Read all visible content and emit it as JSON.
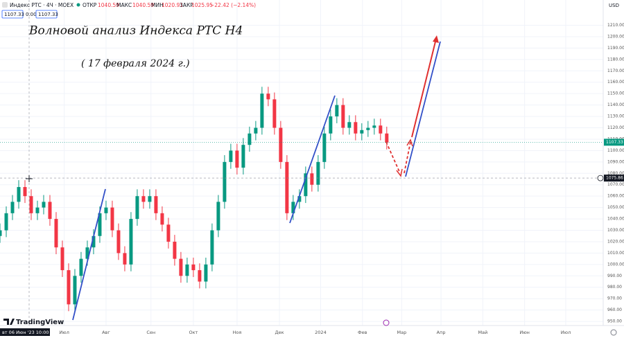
{
  "header": {
    "symbol": "Индекс РТС · 4Ч · MOEX",
    "open_label": "ОТКР",
    "open": "1040.59",
    "high_label": "МАКС",
    "high": "1040.59",
    "low_label": "МИН",
    "low": "1020.91",
    "close_label": "ЗАКР",
    "close": "1025.95",
    "change": "−22.42 (−2.14%)",
    "box1": "1107.33",
    "box2": "0.00",
    "box3": "1107.33"
  },
  "annotations": {
    "title": "Волновой анализ Индекса РТС Н4",
    "date": "( 17 февраля 2024 г.)"
  },
  "footer": {
    "cursor_date": "вт 06 Июн '23  10:00",
    "logo": "TradingView",
    "currency": "USD"
  },
  "chart_data": {
    "type": "candlestick",
    "x": [
      0,
      1,
      2,
      3,
      4,
      5,
      6,
      7,
      8,
      9,
      10,
      11,
      12,
      13,
      14,
      15,
      16,
      17,
      18,
      19,
      20,
      21,
      22,
      23,
      24,
      25,
      26,
      27,
      28,
      29,
      30,
      31,
      32,
      33,
      34,
      35,
      36,
      37,
      38,
      39,
      40,
      41,
      42,
      43,
      44,
      45,
      46,
      47,
      48,
      49,
      50,
      51,
      52,
      53,
      54,
      55,
      56,
      57,
      58,
      59,
      60,
      61,
      62
    ],
    "open": [
      1025,
      1030,
      1045,
      1055,
      1068,
      1060,
      1045,
      1050,
      1055,
      1040,
      1015,
      995,
      965,
      990,
      1005,
      1015,
      1025,
      1045,
      1050,
      1030,
      1010,
      1000,
      1040,
      1060,
      1055,
      1060,
      1045,
      1035,
      1020,
      1005,
      990,
      1000,
      995,
      985,
      1000,
      1030,
      1055,
      1090,
      1100,
      1085,
      1105,
      1115,
      1120,
      1150,
      1145,
      1120,
      1090,
      1045,
      1055,
      1060,
      1080,
      1070,
      1090,
      1115,
      1130,
      1140,
      1120,
      1125,
      1115,
      1118,
      1120,
      1122,
      1115
    ],
    "high": [
      1036,
      1051,
      1061,
      1074,
      1074,
      1066,
      1056,
      1061,
      1061,
      1046,
      1021,
      1001,
      996,
      1011,
      1021,
      1031,
      1051,
      1056,
      1056,
      1036,
      1016,
      1046,
      1066,
      1066,
      1066,
      1066,
      1051,
      1041,
      1026,
      1011,
      1006,
      1006,
      1001,
      1006,
      1036,
      1061,
      1096,
      1106,
      1106,
      1111,
      1121,
      1126,
      1156,
      1156,
      1151,
      1126,
      1096,
      1061,
      1066,
      1086,
      1086,
      1096,
      1121,
      1136,
      1146,
      1146,
      1131,
      1131,
      1124,
      1126,
      1128,
      1128,
      1121
    ],
    "low": [
      1019,
      1024,
      1039,
      1049,
      1054,
      1039,
      1039,
      1044,
      1034,
      1009,
      989,
      959,
      959,
      984,
      999,
      1009,
      1019,
      1039,
      1024,
      1004,
      994,
      994,
      1034,
      1049,
      1049,
      1039,
      1029,
      1014,
      999,
      984,
      984,
      989,
      979,
      979,
      994,
      1024,
      1049,
      1084,
      1079,
      1079,
      1099,
      1109,
      1114,
      1139,
      1114,
      1084,
      1039,
      1039,
      1049,
      1054,
      1064,
      1064,
      1084,
      1109,
      1124,
      1114,
      1114,
      1109,
      1109,
      1112,
      1114,
      1109,
      1101
    ],
    "close": [
      1030,
      1045,
      1055,
      1068,
      1060,
      1045,
      1050,
      1055,
      1040,
      1015,
      995,
      965,
      990,
      1005,
      1015,
      1025,
      1045,
      1050,
      1030,
      1010,
      1000,
      1040,
      1060,
      1055,
      1060,
      1045,
      1035,
      1020,
      1005,
      990,
      1000,
      995,
      985,
      1000,
      1030,
      1055,
      1090,
      1100,
      1085,
      1105,
      1115,
      1120,
      1150,
      1145,
      1120,
      1090,
      1045,
      1055,
      1060,
      1080,
      1070,
      1090,
      1115,
      1130,
      1140,
      1120,
      1125,
      1115,
      1118,
      1120,
      1122,
      1115,
      1107
    ],
    "up_color": "#089981",
    "down_color": "#f23645",
    "xlim": [
      0,
      96.7
    ],
    "xticks": [
      {
        "value": 10.3,
        "label": "Июл"
      },
      {
        "value": 17,
        "label": "Авг"
      },
      {
        "value": 24.2,
        "label": "Сен"
      },
      {
        "value": 31,
        "label": "Окт"
      },
      {
        "value": 38,
        "label": "Ноя"
      },
      {
        "value": 44.8,
        "label": "Дек"
      },
      {
        "value": 51.4,
        "label": "2024"
      },
      {
        "value": 58.1,
        "label": "Фев"
      },
      {
        "value": 64.4,
        "label": "Мар"
      },
      {
        "value": 70.7,
        "label": "Апр"
      },
      {
        "value": 77.4,
        "label": "Май"
      },
      {
        "value": 84.1,
        "label": "Июн"
      },
      {
        "value": 90.7,
        "label": "Июл"
      }
    ],
    "ylim": [
      946.4,
      1232.2
    ],
    "yticks": [
      {
        "value": 950,
        "label": "950.00"
      },
      {
        "value": 960,
        "label": "960.00"
      },
      {
        "value": 970,
        "label": "970.00"
      },
      {
        "value": 980,
        "label": "980.00"
      },
      {
        "value": 990,
        "label": "990.00"
      },
      {
        "value": 1000,
        "label": "1000.00"
      },
      {
        "value": 1010,
        "label": "1010.00"
      },
      {
        "value": 1020,
        "label": "1020.00"
      },
      {
        "value": 1030,
        "label": "1030.00"
      },
      {
        "value": 1040,
        "label": "1040.00"
      },
      {
        "value": 1050,
        "label": "1050.00"
      },
      {
        "value": 1060,
        "label": "1060.00"
      },
      {
        "value": 1070,
        "label": "1070.00"
      },
      {
        "value": 1080,
        "label": "1080.00"
      },
      {
        "value": 1090,
        "label": "1090.00"
      },
      {
        "value": 1100,
        "label": "1100.00"
      },
      {
        "value": 1110,
        "label": "1110.00"
      },
      {
        "value": 1120,
        "label": "1120.00"
      },
      {
        "value": 1130,
        "label": "1130.00"
      },
      {
        "value": 1140,
        "label": "1140.00"
      },
      {
        "value": 1150,
        "label": "1150.00"
      },
      {
        "value": 1160,
        "label": "1160.00"
      },
      {
        "value": 1170,
        "label": "1170.00"
      },
      {
        "value": 1180,
        "label": "1180.00"
      },
      {
        "value": 1190,
        "label": "1190.00"
      },
      {
        "value": 1200,
        "label": "1200.00"
      },
      {
        "value": 1210,
        "label": "1210.00"
      }
    ],
    "grid": true,
    "last_price": 1107.33,
    "crosshair_price": 1075.86
  }
}
